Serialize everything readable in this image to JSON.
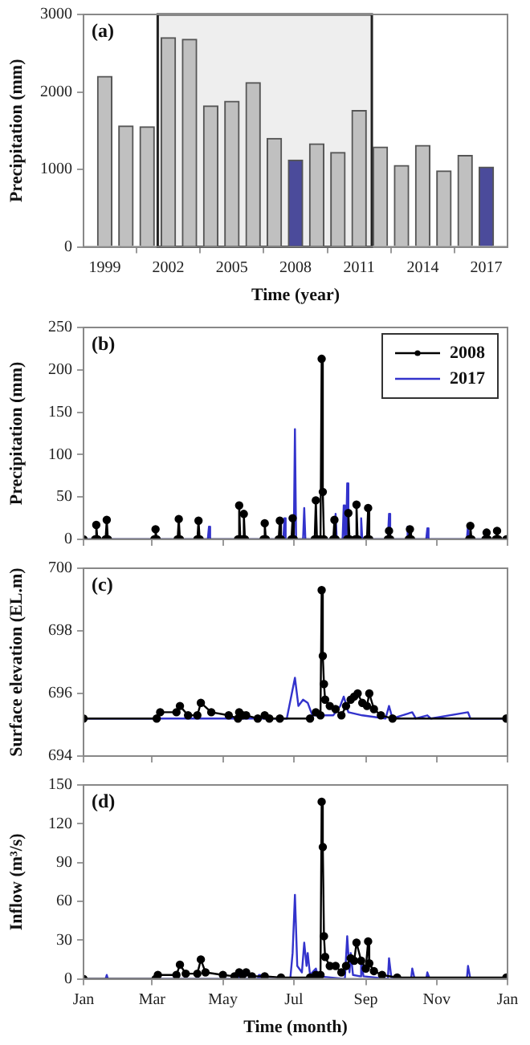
{
  "chart_data": [
    {
      "type": "bar",
      "annotations": [
        "(a)"
      ],
      "xlabel": "Time (year)",
      "ylabel": "Precipitation (mm)",
      "x": [
        1999,
        2000,
        2001,
        2002,
        2003,
        2004,
        2005,
        2006,
        2007,
        2008,
        2009,
        2010,
        2011,
        2012,
        2013,
        2014,
        2015,
        2016,
        2017
      ],
      "values": [
        2200,
        1560,
        1550,
        2700,
        2680,
        1820,
        1880,
        2120,
        1400,
        1120,
        1330,
        1220,
        1760,
        1290,
        1050,
        1310,
        980,
        1180,
        1030
      ],
      "colors": [
        "#c0c0c0",
        "#c0c0c0",
        "#c0c0c0",
        "#c0c0c0",
        "#c0c0c0",
        "#c0c0c0",
        "#c0c0c0",
        "#c0c0c0",
        "#c0c0c0",
        "#4b4b9b",
        "#c0c0c0",
        "#c0c0c0",
        "#c0c0c0",
        "#c0c0c0",
        "#c0c0c0",
        "#c0c0c0",
        "#c0c0c0",
        "#c0c0c0",
        "#4b4b9b"
      ],
      "xlim": [
        1998,
        2018
      ],
      "xticks": [
        1999,
        2002,
        2005,
        2008,
        2011,
        2014,
        2017
      ],
      "ylim": [
        0,
        3000
      ],
      "yticks": [
        0,
        1000,
        2000,
        3000
      ],
      "bands": [
        {
          "axis": "x",
          "from": 2001.5,
          "to": 2011.6,
          "color": "#eeeeee"
        }
      ]
    },
    {
      "type": "line",
      "annotations": [
        "(b)"
      ],
      "ylabel": "Precipitation (mm)",
      "legend": "top right",
      "tick_labels": "y",
      "xlim": [
        "--01-01",
        "2002-01-01"
      ],
      "xticks": [
        {
          "value": "--01-01",
          "label": null
        },
        {
          "value": "--03-01",
          "label": null
        },
        {
          "value": "--05-01",
          "label": null
        },
        {
          "value": "--07-01",
          "label": null
        },
        {
          "value": "--09-01",
          "label": null
        },
        {
          "value": "--11-01",
          "label": null
        },
        {
          "value": "2002-01-01",
          "label": null
        }
      ],
      "ylim": [
        0,
        250
      ],
      "yticks": [
        0,
        50,
        100,
        150,
        200,
        250
      ],
      "series": [
        {
          "name": "2008",
          "color": "#000000",
          "marker": "circle",
          "x": [
            "--01-01",
            "--01-11",
            "--01-12",
            "--01-13",
            "--01-20",
            "--01-21",
            "--01-22",
            "--03-03",
            "--03-04",
            "--03-05",
            "--03-23",
            "--03-24",
            "--03-25",
            "--04-09",
            "--04-10",
            "--04-11",
            "--05-14",
            "--05-15",
            "--05-16",
            "--05-18",
            "--05-19",
            "--05-20",
            "--06-05",
            "--06-06",
            "--06-07",
            "--06-18",
            "--06-19",
            "--06-20",
            "--06-29",
            "--06-30",
            "--07-01",
            "--07-19",
            "--07-20",
            "--07-21",
            "--07-24",
            "--07-25",
            "--07-26",
            "--07-27",
            "--08-04",
            "--08-05",
            "--08-06",
            "--08-16",
            "--08-17",
            "--08-18",
            "--08-23",
            "--08-24",
            "--08-25",
            "--09-02",
            "--09-03",
            "--09-04",
            "--09-20",
            "--09-21",
            "--09-22",
            "--10-08",
            "--10-09",
            "--10-10",
            "--11-29",
            "--11-30",
            "--12-01",
            "--12-13",
            "--12-14",
            "--12-15",
            "--12-22",
            "--12-23",
            "--12-24",
            "--12-31"
          ],
          "values": [
            0,
            0,
            17,
            0,
            0,
            23,
            0,
            0,
            12,
            0,
            0,
            24,
            0,
            0,
            22,
            0,
            0,
            40,
            0,
            0,
            30,
            0,
            0,
            19,
            0,
            0,
            22,
            0,
            0,
            25,
            0,
            0,
            46,
            0,
            0,
            213,
            56,
            0,
            0,
            23,
            0,
            0,
            31,
            0,
            0,
            41,
            0,
            0,
            37,
            0,
            0,
            10,
            0,
            0,
            12,
            0,
            0,
            16,
            0,
            0,
            8,
            0,
            0,
            10,
            0,
            0
          ]
        },
        {
          "name": "2017",
          "color": "#3333cc",
          "marker": "none",
          "x": [
            "--01-01",
            "--04-18",
            "--04-19",
            "--04-20",
            "--06-22",
            "--06-23",
            "--06-24",
            "--07-01",
            "--07-02",
            "--07-03",
            "--07-09",
            "--07-10",
            "--07-11",
            "--08-05",
            "--08-06",
            "--08-07",
            "--08-12",
            "--08-13",
            "--08-14",
            "--08-15",
            "--08-16",
            "--08-17",
            "--08-27",
            "--08-28",
            "--08-29",
            "--09-20",
            "--09-21",
            "--09-22",
            "--10-06",
            "--10-07",
            "--10-08",
            "--10-23",
            "--10-24",
            "--10-25",
            "--11-27",
            "--11-28",
            "--11-29",
            "--12-31"
          ],
          "values": [
            0,
            0,
            15,
            0,
            0,
            25,
            0,
            0,
            130,
            0,
            0,
            37,
            0,
            0,
            30,
            0,
            0,
            40,
            0,
            0,
            66,
            0,
            0,
            25,
            0,
            0,
            30,
            0,
            0,
            15,
            0,
            0,
            13,
            0,
            0,
            16,
            0,
            0
          ]
        }
      ]
    },
    {
      "type": "line",
      "annotations": [
        "(c)"
      ],
      "ylabel": "Surface elevation (EL.m)",
      "tick_labels": "y",
      "xlim": [
        "--01-01",
        "2002-01-01"
      ],
      "xticks": [
        {
          "value": "--01-01",
          "label": null
        },
        {
          "value": "--03-01",
          "label": null
        },
        {
          "value": "--05-01",
          "label": null
        },
        {
          "value": "--07-01",
          "label": null
        },
        {
          "value": "--09-01",
          "label": null
        },
        {
          "value": "--11-01",
          "label": null
        },
        {
          "value": "2002-01-01",
          "label": null
        }
      ],
      "ylim": [
        694,
        700
      ],
      "yticks": [
        694,
        696,
        698,
        700
      ],
      "series": [
        {
          "color": "#000000",
          "marker": "circle",
          "x": [
            "--01-01",
            "--03-05",
            "--03-08",
            "--03-22",
            "--03-25",
            "--04-01",
            "--04-09",
            "--04-12",
            "--04-21",
            "--05-06",
            "--05-14",
            "--05-15",
            "--05-18",
            "--05-21",
            "--05-31",
            "--06-06",
            "--06-10",
            "--06-19",
            "--07-15",
            "--07-20",
            "--07-24",
            "--07-25",
            "--07-26",
            "--07-27",
            "--07-28",
            "--08-01",
            "--08-06",
            "--08-11",
            "--08-15",
            "--08-19",
            "--08-22",
            "--08-25",
            "--08-29",
            "--09-02",
            "--09-04",
            "--09-08",
            "--09-14",
            "--09-24",
            "--12-31"
          ],
          "values": [
            695.2,
            695.2,
            695.4,
            695.4,
            695.6,
            695.3,
            695.3,
            695.7,
            695.4,
            695.3,
            695.2,
            695.4,
            695.3,
            695.3,
            695.2,
            695.3,
            695.2,
            695.2,
            695.2,
            695.4,
            695.3,
            699.3,
            697.2,
            696.3,
            695.8,
            695.6,
            695.5,
            695.3,
            695.6,
            695.8,
            695.9,
            696.0,
            695.7,
            695.6,
            696.0,
            695.5,
            695.3,
            695.2,
            695.2
          ]
        },
        {
          "color": "#3333cc",
          "marker": "none",
          "x": [
            "--01-01",
            "--06-25",
            "--07-02",
            "--07-05",
            "--07-09",
            "--07-13",
            "--07-17",
            "--08-04",
            "--08-10",
            "--08-13",
            "--08-17",
            "--08-29",
            "--09-18",
            "--09-21",
            "--09-24",
            "--10-11",
            "--10-14",
            "--10-24",
            "--10-27",
            "--11-28",
            "--11-30",
            "--12-31"
          ],
          "values": [
            695.2,
            695.2,
            696.5,
            695.6,
            695.8,
            695.7,
            695.3,
            695.3,
            695.6,
            695.9,
            695.4,
            695.3,
            695.2,
            695.6,
            695.2,
            695.4,
            695.2,
            695.3,
            695.2,
            695.4,
            695.2,
            695.2
          ]
        }
      ]
    },
    {
      "type": "line",
      "annotations": [
        "(d)"
      ],
      "ylabel": "Inflow (m³/s)",
      "xlabel": "Time (month)",
      "xlim": [
        "--01-01",
        "2002-01-01"
      ],
      "xticks": [
        {
          "value": "--01-01",
          "label": "Jan"
        },
        {
          "value": "--03-01",
          "label": "Mar"
        },
        {
          "value": "--05-01",
          "label": "May"
        },
        {
          "value": "--07-01",
          "label": "Jul"
        },
        {
          "value": "--09-01",
          "label": "Sep"
        },
        {
          "value": "--11-01",
          "label": "Nov"
        },
        {
          "value": "2002-01-01",
          "label": "Jan"
        }
      ],
      "ylim": [
        0,
        150
      ],
      "yticks": [
        0,
        30,
        60,
        90,
        120,
        150
      ],
      "series": [
        {
          "color": "#000000",
          "marker": "circle",
          "x": [
            "--01-01",
            "--03-04",
            "--03-06",
            "--03-22",
            "--03-25",
            "--03-30",
            "--04-09",
            "--04-12",
            "--04-16",
            "--05-01",
            "--05-11",
            "--05-15",
            "--05-18",
            "--05-21",
            "--05-26",
            "--06-06",
            "--06-20",
            "--07-15",
            "--07-20",
            "--07-24",
            "--07-25",
            "--07-26",
            "--07-27",
            "--07-28",
            "--08-01",
            "--08-06",
            "--08-11",
            "--08-15",
            "--08-19",
            "--08-22",
            "--08-24",
            "--08-28",
            "--09-01",
            "--09-03",
            "--09-04",
            "--09-08",
            "--09-15",
            "--09-28",
            "--12-31"
          ],
          "values": [
            0,
            0,
            3,
            3,
            11,
            4,
            4,
            15,
            5,
            3,
            2,
            5,
            3,
            5,
            2,
            2,
            1,
            1,
            3,
            3,
            137,
            102,
            33,
            17,
            10,
            10,
            5,
            10,
            16,
            14,
            28,
            14,
            8,
            29,
            12,
            6,
            3,
            1,
            1
          ]
        },
        {
          "color": "#3333cc",
          "marker": "none",
          "x": [
            "--01-01",
            "--01-20",
            "--01-21",
            "--01-22",
            "--05-14",
            "--05-15",
            "--05-16",
            "--05-31",
            "--06-01",
            "--06-02",
            "--06-28",
            "--06-30",
            "--07-02",
            "--07-04",
            "--07-08",
            "--07-10",
            "--07-12",
            "--07-13",
            "--07-15",
            "--07-20",
            "--07-22",
            "--08-14",
            "--08-16",
            "--08-18",
            "--08-19",
            "--08-21",
            "--08-27",
            "--08-28",
            "--08-30",
            "--09-20",
            "--09-21",
            "--09-23",
            "--10-10",
            "--10-11",
            "--10-13",
            "--10-23",
            "--10-24",
            "--10-26",
            "--11-27",
            "--11-28",
            "--11-30",
            "--12-31"
          ],
          "values": [
            0,
            0,
            3,
            0,
            0,
            5,
            0,
            0,
            3,
            0,
            0,
            20,
            65,
            10,
            5,
            28,
            10,
            20,
            3,
            8,
            2,
            0,
            33,
            5,
            20,
            3,
            2,
            15,
            2,
            0,
            16,
            1,
            0,
            8,
            0,
            0,
            5,
            0,
            0,
            10,
            0,
            0
          ]
        }
      ]
    }
  ]
}
